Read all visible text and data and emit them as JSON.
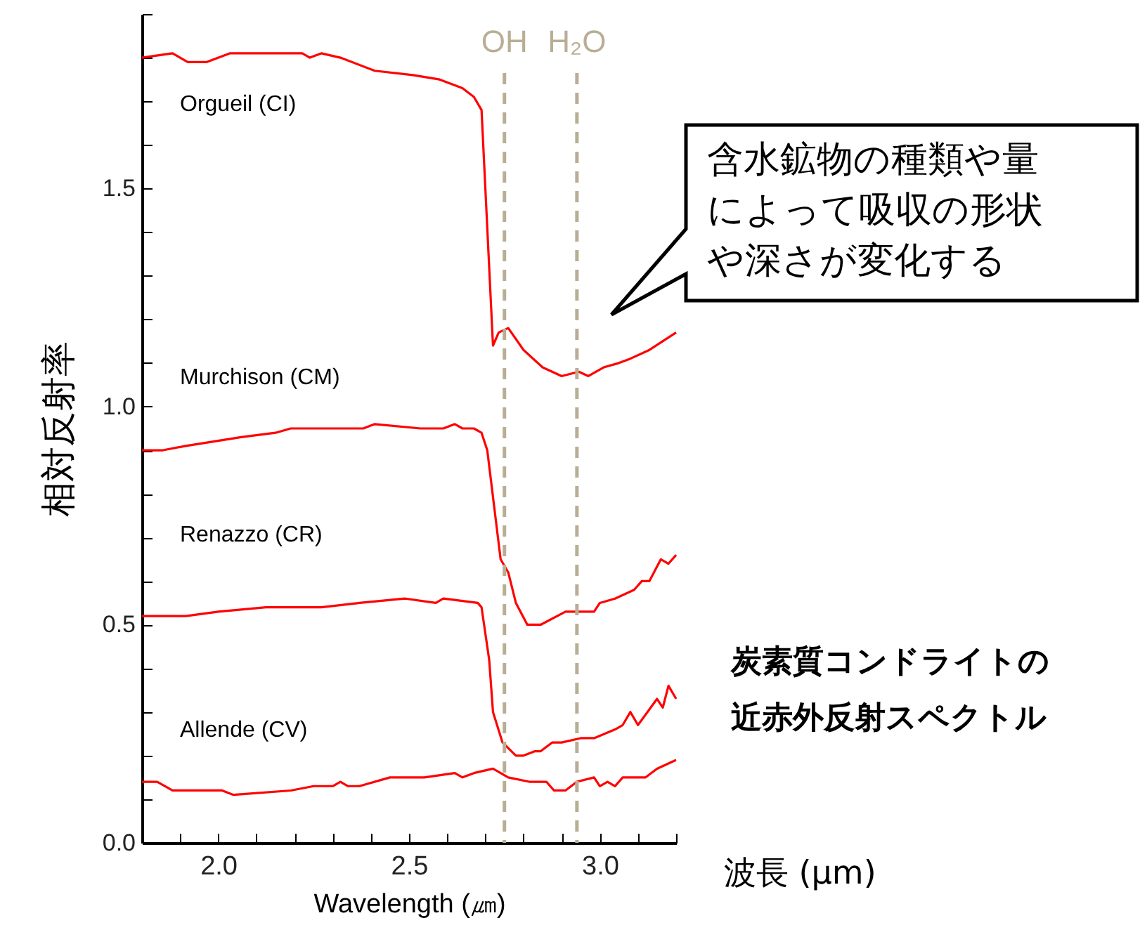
{
  "chart_data": {
    "type": "line",
    "xlabel": "Wavelength (㎛)",
    "ylabel": "相対反射率",
    "xlim": [
      1.8,
      3.2
    ],
    "ylim": [
      0,
      1.9
    ],
    "xticks": [
      {
        "value": 1.8,
        "label": null
      },
      {
        "value": 1.9,
        "label": null
      },
      {
        "value": 2.0,
        "label": "2.0"
      },
      {
        "value": 2.1,
        "label": null
      },
      {
        "value": 2.2,
        "label": null
      },
      {
        "value": 2.3,
        "label": null
      },
      {
        "value": 2.4,
        "label": null
      },
      {
        "value": 2.5,
        "label": "2.5"
      },
      {
        "value": 2.6,
        "label": null
      },
      {
        "value": 2.7,
        "label": null
      },
      {
        "value": 2.8,
        "label": null
      },
      {
        "value": 2.9,
        "label": null
      },
      {
        "value": 3.0,
        "label": "3.0"
      },
      {
        "value": 3.1,
        "label": null
      },
      {
        "value": 3.2,
        "label": null
      }
    ],
    "yticks": [
      {
        "value": 0,
        "label": "0.0"
      },
      {
        "value": 0.1,
        "label": null
      },
      {
        "value": 0.2,
        "label": null
      },
      {
        "value": 0.3,
        "label": null
      },
      {
        "value": 0.4,
        "label": null
      },
      {
        "value": 0.5,
        "label": "0.5"
      },
      {
        "value": 0.6,
        "label": null
      },
      {
        "value": 0.7,
        "label": null
      },
      {
        "value": 0.8,
        "label": null
      },
      {
        "value": 0.9,
        "label": null
      },
      {
        "value": 1.0,
        "label": "1.0"
      },
      {
        "value": 1.1,
        "label": null
      },
      {
        "value": 1.2,
        "label": null
      },
      {
        "value": 1.3,
        "label": null
      },
      {
        "value": 1.4,
        "label": null
      },
      {
        "value": 1.5,
        "label": "1.5"
      },
      {
        "value": 1.6,
        "label": null
      },
      {
        "value": 1.7,
        "label": null
      },
      {
        "value": 1.8,
        "label": null
      },
      {
        "value": 1.9,
        "label": null
      }
    ],
    "grid": false,
    "marker": "none",
    "series": [
      {
        "name": "Orgueil (CI)",
        "color": "#ff0000",
        "x": [
          1.8,
          1.88,
          1.92,
          1.97,
          2.03,
          2.09,
          2.22,
          2.24,
          2.27,
          2.32,
          2.41,
          2.51,
          2.58,
          2.64,
          2.67,
          2.69,
          2.72,
          2.735,
          2.76,
          2.8,
          2.85,
          2.9,
          2.945,
          2.97,
          3.01,
          3.05,
          3.08,
          3.13,
          3.2
        ],
        "values": [
          1.8,
          1.81,
          1.79,
          1.79,
          1.81,
          1.81,
          1.81,
          1.8,
          1.81,
          1.8,
          1.77,
          1.76,
          1.75,
          1.73,
          1.71,
          1.68,
          1.14,
          1.17,
          1.18,
          1.13,
          1.09,
          1.07,
          1.08,
          1.07,
          1.09,
          1.1,
          1.11,
          1.13,
          1.17
        ]
      },
      {
        "name": "Murchison (CM)",
        "color": "#ff0000",
        "x": [
          1.8,
          1.855,
          1.915,
          2.06,
          2.15,
          2.19,
          2.3,
          2.32,
          2.38,
          2.41,
          2.53,
          2.59,
          2.62,
          2.64,
          2.67,
          2.69,
          2.705,
          2.74,
          2.76,
          2.78,
          2.81,
          2.82,
          2.845,
          2.91,
          2.93,
          2.985,
          3.0,
          3.04,
          3.09,
          3.11,
          3.13,
          3.16,
          3.18,
          3.2
        ],
        "values": [
          0.9,
          0.9,
          0.91,
          0.93,
          0.94,
          0.95,
          0.95,
          0.95,
          0.95,
          0.96,
          0.95,
          0.95,
          0.96,
          0.95,
          0.95,
          0.94,
          0.9,
          0.65,
          0.62,
          0.55,
          0.5,
          0.5,
          0.5,
          0.53,
          0.53,
          0.53,
          0.55,
          0.56,
          0.58,
          0.6,
          0.6,
          0.65,
          0.64,
          0.66
        ]
      },
      {
        "name": "Renazzo (CR)",
        "color": "#ff0000",
        "x": [
          1.8,
          1.83,
          1.915,
          2.0,
          2.125,
          2.27,
          2.37,
          2.49,
          2.57,
          2.59,
          2.68,
          2.69,
          2.71,
          2.72,
          2.745,
          2.78,
          2.8,
          2.83,
          2.845,
          2.875,
          2.9,
          2.95,
          2.985,
          3.04,
          3.06,
          3.08,
          3.1,
          3.15,
          3.165,
          3.18,
          3.2
        ],
        "values": [
          0.52,
          0.52,
          0.52,
          0.53,
          0.54,
          0.54,
          0.55,
          0.56,
          0.55,
          0.56,
          0.55,
          0.54,
          0.42,
          0.3,
          0.23,
          0.2,
          0.2,
          0.21,
          0.21,
          0.23,
          0.23,
          0.24,
          0.24,
          0.26,
          0.27,
          0.3,
          0.27,
          0.33,
          0.31,
          0.36,
          0.33
        ]
      },
      {
        "name": "Allende (CV)",
        "color": "#ff0000",
        "x": [
          1.8,
          1.84,
          1.88,
          1.95,
          2.01,
          2.04,
          2.19,
          2.25,
          2.3,
          2.32,
          2.34,
          2.37,
          2.45,
          2.54,
          2.62,
          2.64,
          2.67,
          2.72,
          2.76,
          2.815,
          2.86,
          2.88,
          2.91,
          2.94,
          2.985,
          3.0,
          3.02,
          3.04,
          3.06,
          3.12,
          3.15,
          3.2
        ],
        "values": [
          0.14,
          0.14,
          0.12,
          0.12,
          0.12,
          0.11,
          0.12,
          0.13,
          0.13,
          0.14,
          0.13,
          0.13,
          0.15,
          0.15,
          0.16,
          0.15,
          0.16,
          0.17,
          0.15,
          0.14,
          0.14,
          0.12,
          0.12,
          0.14,
          0.15,
          0.13,
          0.14,
          0.13,
          0.15,
          0.15,
          0.17,
          0.19
        ]
      }
    ],
    "ref_lines": [
      {
        "axis": "x",
        "value": 2.75,
        "label": "OH",
        "color": "#b8ae94",
        "line_style": "dashed"
      },
      {
        "axis": "x",
        "value": 2.94,
        "label": "H₂O",
        "color": "#b8ae94",
        "line_style": "dashed"
      }
    ],
    "annotations": [
      "含水鉱物の種類や量によって吸収の形状や深さが変化する",
      "炭素質コンドライトの近赤外反射スペクトル",
      "波長 (µm)"
    ]
  }
}
